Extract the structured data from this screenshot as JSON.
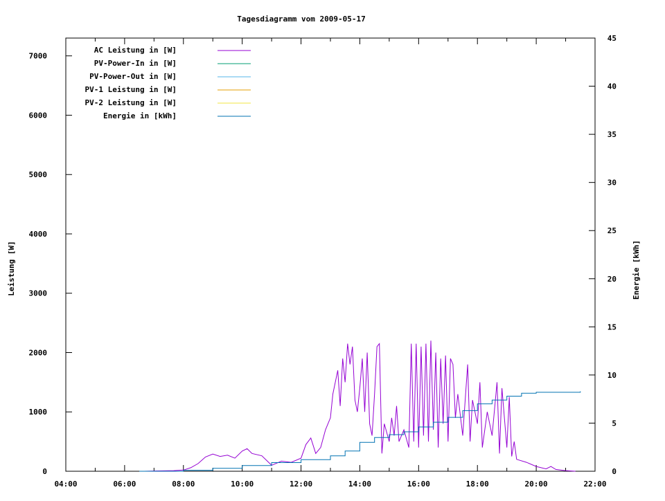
{
  "chart_data": {
    "type": "line",
    "title": "Tagesdiagramm vom 2009-05-17",
    "ylabel": "Leistung [W]",
    "y2label": "Energie [kWh]",
    "xlim": [
      "04:00",
      "22:00"
    ],
    "ylim": [
      0,
      7300
    ],
    "y2lim": [
      0,
      45
    ],
    "xticks": [
      "04:00",
      "06:00",
      "08:00",
      "10:00",
      "12:00",
      "14:00",
      "16:00",
      "18:00",
      "20:00",
      "22:00"
    ],
    "yticks": [
      0,
      1000,
      2000,
      3000,
      4000,
      5000,
      6000,
      7000
    ],
    "y2ticks": [
      0,
      5,
      10,
      15,
      20,
      25,
      30,
      35,
      40,
      45
    ],
    "grid": false,
    "legend_position": "top-left",
    "series": [
      {
        "name": "AC Leistung in [W]",
        "color": "#9400d3",
        "axis": "y",
        "x": [
          "06:40",
          "07:00",
          "07:40",
          "08:00",
          "08:15",
          "08:30",
          "08:45",
          "09:00",
          "09:15",
          "09:30",
          "09:45",
          "10:00",
          "10:10",
          "10:20",
          "10:40",
          "11:00",
          "11:20",
          "11:40",
          "12:00",
          "12:10",
          "12:20",
          "12:30",
          "12:40",
          "12:50",
          "13:00",
          "13:05",
          "13:15",
          "13:20",
          "13:25",
          "13:30",
          "13:35",
          "13:40",
          "13:45",
          "13:50",
          "13:55",
          "14:00",
          "14:05",
          "14:10",
          "14:15",
          "14:20",
          "14:25",
          "14:30",
          "14:35",
          "14:40",
          "14:45",
          "14:50",
          "15:00",
          "15:05",
          "15:10",
          "15:15",
          "15:20",
          "15:30",
          "15:40",
          "15:45",
          "15:50",
          "15:55",
          "16:00",
          "16:05",
          "16:10",
          "16:15",
          "16:20",
          "16:25",
          "16:30",
          "16:35",
          "16:40",
          "16:45",
          "16:50",
          "16:55",
          "17:00",
          "17:05",
          "17:10",
          "17:15",
          "17:20",
          "17:30",
          "17:40",
          "17:45",
          "17:50",
          "18:00",
          "18:05",
          "18:10",
          "18:20",
          "18:30",
          "18:40",
          "18:45",
          "18:50",
          "19:00",
          "19:05",
          "19:10",
          "19:15",
          "19:20",
          "19:40",
          "20:00",
          "20:20",
          "20:30",
          "20:40",
          "21:00",
          "21:20"
        ],
        "y": [
          0,
          5,
          10,
          20,
          60,
          130,
          240,
          290,
          250,
          270,
          220,
          340,
          380,
          300,
          260,
          100,
          170,
          150,
          220,
          450,
          560,
          300,
          400,
          700,
          900,
          1300,
          1700,
          1100,
          1900,
          1500,
          2150,
          1800,
          2100,
          1200,
          1000,
          1400,
          1900,
          1000,
          2000,
          800,
          600,
          1300,
          2100,
          2150,
          300,
          800,
          500,
          900,
          600,
          1100,
          500,
          700,
          400,
          2150,
          500,
          2150,
          400,
          2100,
          600,
          2150,
          500,
          2200,
          700,
          2000,
          400,
          1900,
          800,
          1950,
          500,
          1900,
          1800,
          900,
          1300,
          600,
          1800,
          500,
          1200,
          800,
          1500,
          400,
          1000,
          600,
          1500,
          300,
          1400,
          400,
          1250,
          250,
          500,
          200,
          150,
          80,
          40,
          80,
          30,
          10,
          0
        ]
      },
      {
        "name": "PV-Power-In in [W]",
        "color": "#009e73",
        "axis": "y",
        "x": [],
        "y": []
      },
      {
        "name": "PV-Power-Out in [W]",
        "color": "#56b4e9",
        "axis": "y",
        "x": [],
        "y": []
      },
      {
        "name": "PV-1 Leistung in [W]",
        "color": "#e69f00",
        "axis": "y",
        "x": [],
        "y": []
      },
      {
        "name": "PV-2 Leistung in [W]",
        "color": "#f0e442",
        "axis": "y",
        "x": [],
        "y": []
      },
      {
        "name": "Energie in [kWh]",
        "color": "#0072b2",
        "axis": "y2",
        "x": [
          "06:30",
          "08:00",
          "09:00",
          "10:00",
          "11:00",
          "12:00",
          "13:00",
          "13:30",
          "14:00",
          "14:30",
          "15:00",
          "15:30",
          "16:00",
          "16:30",
          "17:00",
          "17:30",
          "18:00",
          "18:30",
          "19:00",
          "19:30",
          "20:00",
          "21:30"
        ],
        "y": [
          0,
          0.1,
          0.3,
          0.6,
          0.9,
          1.2,
          1.6,
          2.1,
          3.0,
          3.5,
          3.8,
          4.1,
          4.6,
          5.1,
          5.6,
          6.3,
          7.0,
          7.4,
          7.8,
          8.1,
          8.2,
          8.3
        ]
      }
    ]
  }
}
